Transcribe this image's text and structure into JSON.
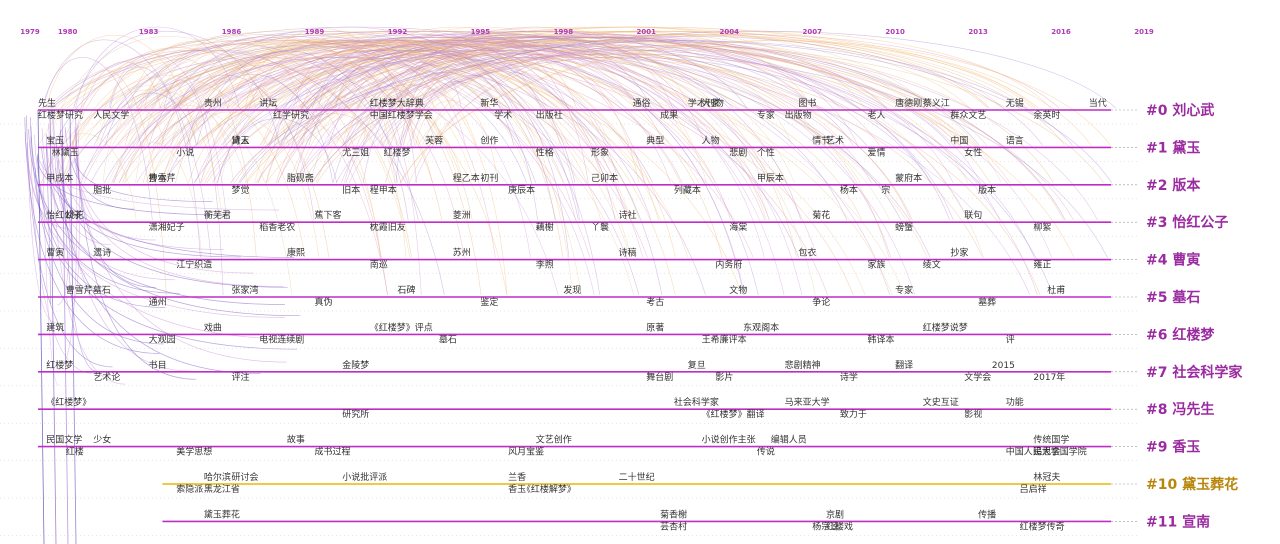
{
  "timeline": {
    "years": [
      "1979",
      "1980",
      "1983",
      "1986",
      "1989",
      "1992",
      "1995",
      "1998",
      "2001",
      "2004",
      "2007",
      "2010",
      "2013",
      "2016",
      "2019"
    ]
  },
  "colors": {
    "lane": "#c02cc8",
    "lane_highlight": "#e8b800",
    "year": "#b03ab8",
    "label_highlight": "#b8860b",
    "label": "#9b2ba0"
  },
  "clusters": [
    {
      "label": "#0 刘心武",
      "highlight": false,
      "start": 1979,
      "end": 2016,
      "terms": [
        [
          "先生",
          1979
        ],
        [
          "人民文学",
          1981
        ],
        [
          "讲坛",
          1987
        ],
        [
          "中国红楼梦学会",
          1991
        ],
        [
          "新华",
          1995
        ],
        [
          "出版社",
          1997
        ],
        [
          "通俗",
          2000.5
        ],
        [
          "成果",
          2001.5
        ],
        [
          "学术刊物",
          2002.5
        ],
        [
          "专家",
          2005
        ],
        [
          "图书",
          2006.5
        ],
        [
          "老人",
          2009
        ],
        [
          "唐德刚",
          2010
        ],
        [
          "群众文艺",
          2012
        ],
        [
          "无锡",
          2014
        ],
        [
          "红楼梦研究",
          1979
        ],
        [
          "贵州",
          1985
        ],
        [
          "红学研究",
          1987.5
        ],
        [
          "红楼梦大辞典",
          1991
        ],
        [
          "学术",
          1995.5
        ],
        [
          "大家",
          2003
        ],
        [
          "出版物",
          2006
        ],
        [
          "蔡义江",
          2011
        ],
        [
          "余英时",
          2015
        ],
        [
          "当代",
          2017
        ]
      ]
    },
    {
      "label": "#1 黛玉",
      "highlight": false,
      "start": 1979,
      "end": 2016,
      "terms": [
        [
          "宝玉",
          1979.3
        ],
        [
          "小说",
          1984
        ],
        [
          "黛玉",
          1986
        ],
        [
          "红楼梦",
          1991.5
        ],
        [
          "创作",
          1995
        ],
        [
          "形象",
          1999
        ],
        [
          "人物",
          2003
        ],
        [
          "个性",
          2005
        ],
        [
          "情节",
          2007
        ],
        [
          "爱情",
          2009
        ],
        [
          "中国",
          2012
        ],
        [
          "林黛玉",
          1979.5
        ],
        [
          "诗人",
          1986
        ],
        [
          "尤三姐",
          1990
        ],
        [
          "芙蓉",
          1993
        ],
        [
          "性格",
          1997
        ],
        [
          "典型",
          2001
        ],
        [
          "悲剧",
          2004
        ],
        [
          "艺术",
          2007.5
        ],
        [
          "女性",
          2012.5
        ],
        [
          "语言",
          2014
        ]
      ]
    },
    {
      "label": "#2 版本",
      "highlight": false,
      "start": 1979,
      "end": 2016,
      "terms": [
        [
          "甲戌本",
          1979.3
        ],
        [
          "脂批",
          1981
        ],
        [
          "曹雪芹",
          1983
        ],
        [
          "梦觉",
          1986
        ],
        [
          "脂砚斋",
          1988
        ],
        [
          "程甲本",
          1991
        ],
        [
          "程乙本",
          1994
        ],
        [
          "庚辰本",
          1996
        ],
        [
          "己卯本",
          1999
        ],
        [
          "列藏本",
          2002
        ],
        [
          "甲辰本",
          2005
        ],
        [
          "杨本",
          2008
        ],
        [
          "蒙府本",
          2010
        ],
        [
          "版本",
          2013
        ],
        [
          "抄本",
          1983
        ],
        [
          "旧本",
          1990
        ],
        [
          "初刊",
          1995
        ],
        [
          "宗",
          2009.5
        ]
      ]
    },
    {
      "label": "#3 怡红公子",
      "highlight": false,
      "start": 1979,
      "end": 2016,
      "terms": [
        [
          "怡红公子",
          1979.3
        ],
        [
          "潇湘妃子",
          1983
        ],
        [
          "蘅芜君",
          1985
        ],
        [
          "稻香老农",
          1987
        ],
        [
          "蕉下客",
          1989
        ],
        [
          "枕霞旧友",
          1991
        ],
        [
          "菱洲",
          1994
        ],
        [
          "藕榭",
          1997
        ],
        [
          "诗社",
          2000
        ],
        [
          "海棠",
          2004
        ],
        [
          "菊花",
          2007
        ],
        [
          "螃蟹",
          2010
        ],
        [
          "联句",
          2012.5
        ],
        [
          "柳絮",
          2015
        ],
        [
          "桃花",
          1980
        ],
        [
          "丫鬟",
          1999
        ]
      ]
    },
    {
      "label": "#4 曹寅",
      "highlight": false,
      "start": 1979,
      "end": 2016,
      "terms": [
        [
          "曹寅",
          1979.3
        ],
        [
          "江宁织造",
          1984
        ],
        [
          "康熙",
          1988
        ],
        [
          "南巡",
          1991
        ],
        [
          "苏州",
          1994
        ],
        [
          "李煦",
          1997
        ],
        [
          "诗稿",
          2000
        ],
        [
          "内务府",
          2003.5
        ],
        [
          "包衣",
          2006.5
        ],
        [
          "家族",
          2009
        ],
        [
          "抄家",
          2012
        ],
        [
          "雍正",
          2015
        ],
        [
          "遗诗",
          1981
        ],
        [
          "绫文",
          2011
        ]
      ]
    },
    {
      "label": "#5 墓石",
      "highlight": false,
      "start": 1979,
      "end": 2016,
      "terms": [
        [
          "曹雪芹墓石",
          1980
        ],
        [
          "通州",
          1983
        ],
        [
          "张家湾",
          1986
        ],
        [
          "真伪",
          1989
        ],
        [
          "石碑",
          1992
        ],
        [
          "鉴定",
          1995
        ],
        [
          "发现",
          1998
        ],
        [
          "考古",
          2001
        ],
        [
          "文物",
          2004
        ],
        [
          "争论",
          2007
        ],
        [
          "专家",
          2010
        ],
        [
          "墓葬",
          2013
        ],
        [
          "杜甫",
          2015.5
        ]
      ]
    },
    {
      "label": "#6 红楼梦",
      "highlight": false,
      "start": 1979,
      "end": 2016,
      "terms": [
        [
          "建筑",
          1979.3
        ],
        [
          "大观园",
          1983
        ],
        [
          "戏曲",
          1985
        ],
        [
          "电视连续剧",
          1987
        ],
        [
          "《红楼梦》评点",
          1991
        ],
        [
          "墓石",
          1993.5
        ],
        [
          "原著",
          2001
        ],
        [
          "王希廉评本",
          2003
        ],
        [
          "东观阁本",
          2004.5
        ],
        [
          "韩译本",
          2009
        ],
        [
          "红楼梦说梦",
          2011
        ],
        [
          "评",
          2014
        ]
      ]
    },
    {
      "label": "#7 社会科学家",
      "highlight": false,
      "start": 1979,
      "end": 2016,
      "terms": [
        [
          "红楼梦",
          1979.3
        ],
        [
          "艺术论",
          1981
        ],
        [
          "书目",
          1983
        ],
        [
          "评注",
          1986
        ],
        [
          "金陵梦",
          1990
        ],
        [
          "舞台剧",
          2001
        ],
        [
          "复旦",
          2002.5
        ],
        [
          "影片",
          2003.5
        ],
        [
          "悲剧精神",
          2006
        ],
        [
          "诗学",
          2008
        ],
        [
          "翻译",
          2010
        ],
        [
          "文学会",
          2012.5
        ],
        [
          "2015",
          2013.5
        ],
        [
          "2017年",
          2015
        ]
      ]
    },
    {
      "label": "#8 冯先生",
      "highlight": false,
      "start": 1979,
      "end": 2016,
      "terms": [
        [
          "《红楼梦》",
          1979.3
        ],
        [
          "研究所",
          1990
        ],
        [
          "社会科学家",
          2002
        ],
        [
          "《红楼梦》翻译",
          2003
        ],
        [
          "马来亚大学",
          2006
        ],
        [
          "致力于",
          2008
        ],
        [
          "文史互证",
          2011
        ],
        [
          "影视",
          2012.5
        ],
        [
          "功能",
          2014
        ]
      ]
    },
    {
      "label": "#9 香玉",
      "highlight": false,
      "start": 1979,
      "end": 2016,
      "terms": [
        [
          "民国文学",
          1979.3
        ],
        [
          "红楼",
          1980
        ],
        [
          "少女",
          1981
        ],
        [
          "美学思想",
          1984
        ],
        [
          "故事",
          1988
        ],
        [
          "成书过程",
          1989
        ],
        [
          "文艺创作",
          1997
        ],
        [
          "风月宝鉴",
          1996
        ],
        [
          "小说创作主张",
          2003
        ],
        [
          "传说",
          2005
        ],
        [
          "编辑人员",
          2005.5
        ],
        [
          "中国人民大学国学院",
          2014
        ],
        [
          "传统国学",
          2015
        ],
        [
          "追思会",
          2015
        ]
      ]
    },
    {
      "label": "#10 黛玉葬花",
      "highlight": true,
      "start": 1983.5,
      "end": 2016,
      "terms": [
        [
          "哈尔滨",
          1985
        ],
        [
          "黑龙江省",
          1985
        ],
        [
          "研讨会",
          1986
        ],
        [
          "索隐派",
          1984
        ],
        [
          "小说批评派",
          1990
        ],
        [
          "香玉",
          1996
        ],
        [
          "兰香",
          1996
        ],
        [
          "《红楼解梦》",
          1996.5
        ],
        [
          "二十世纪",
          2000
        ],
        [
          "吕启祥",
          2014.5
        ],
        [
          "林冠夫",
          2015
        ]
      ]
    },
    {
      "label": "#11 宣南",
      "highlight": false,
      "start": 1983.5,
      "end": 2016,
      "terms": [
        [
          "黛玉葬花",
          1985
        ],
        [
          "杨宗逵",
          2007
        ],
        [
          "京剧",
          2007.5
        ],
        [
          "红楼戏",
          2007.5
        ],
        [
          "传播",
          2013
        ],
        [
          "红楼梦传奇",
          2014.5
        ],
        [
          "菊香榭",
          2001.5
        ],
        [
          "芸杏村",
          2001.5
        ]
      ]
    }
  ]
}
